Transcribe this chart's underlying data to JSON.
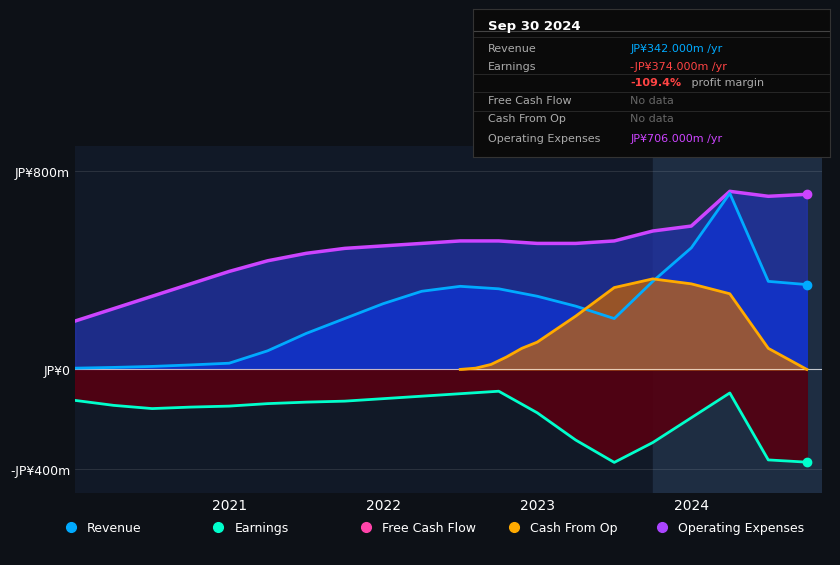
{
  "bg_color": "#0d1117",
  "plot_area_bg": "#111927",
  "highlight_color": "#1e2d42",
  "yticks": [
    "JP¥800m",
    "JP¥0",
    "-JP¥400m"
  ],
  "ytick_vals": [
    800,
    0,
    -400
  ],
  "xtick_labels": [
    "2021",
    "2022",
    "2023",
    "2024"
  ],
  "legend": [
    {
      "label": "Revenue",
      "color": "#00aaff"
    },
    {
      "label": "Earnings",
      "color": "#00ffcc"
    },
    {
      "label": "Free Cash Flow",
      "color": "#ff44aa"
    },
    {
      "label": "Cash From Op",
      "color": "#ffaa00"
    },
    {
      "label": "Operating Expenses",
      "color": "#aa44ff"
    }
  ],
  "revenue": {
    "x": [
      2020.0,
      2020.25,
      2020.5,
      2020.75,
      2021.0,
      2021.25,
      2021.5,
      2021.75,
      2022.0,
      2022.25,
      2022.5,
      2022.75,
      2023.0,
      2023.25,
      2023.5,
      2023.75,
      2024.0,
      2024.25,
      2024.5,
      2024.75
    ],
    "y": [
      5,
      8,
      12,
      18,
      25,
      75,
      145,
      205,
      265,
      315,
      335,
      325,
      295,
      255,
      205,
      355,
      490,
      710,
      355,
      342
    ],
    "color": "#00aaff",
    "lw": 2.0
  },
  "earnings": {
    "x": [
      2020.0,
      2020.25,
      2020.5,
      2020.75,
      2021.0,
      2021.25,
      2021.5,
      2021.75,
      2022.0,
      2022.25,
      2022.5,
      2022.75,
      2023.0,
      2023.25,
      2023.5,
      2023.75,
      2024.0,
      2024.25,
      2024.5,
      2024.75
    ],
    "y": [
      -125,
      -145,
      -158,
      -152,
      -148,
      -138,
      -132,
      -128,
      -118,
      -108,
      -98,
      -88,
      -175,
      -285,
      -375,
      -295,
      -195,
      -95,
      -365,
      -374
    ],
    "color": "#00ffcc",
    "lw": 2.0
  },
  "operating_expenses": {
    "x": [
      2020.0,
      2020.25,
      2020.5,
      2020.75,
      2021.0,
      2021.25,
      2021.5,
      2021.75,
      2022.0,
      2022.25,
      2022.5,
      2022.75,
      2023.0,
      2023.25,
      2023.5,
      2023.75,
      2024.0,
      2024.25,
      2024.5,
      2024.75
    ],
    "y": [
      195,
      245,
      295,
      345,
      395,
      438,
      468,
      488,
      498,
      508,
      518,
      518,
      508,
      508,
      518,
      558,
      578,
      718,
      698,
      706
    ],
    "color": "#cc44ff",
    "lw": 2.5
  },
  "cash_from_op": {
    "x": [
      2022.5,
      2022.6,
      2022.7,
      2022.8,
      2022.9,
      2023.0,
      2023.25,
      2023.5,
      2023.75,
      2024.0,
      2024.25,
      2024.5,
      2024.75
    ],
    "y": [
      0,
      5,
      20,
      50,
      85,
      110,
      215,
      330,
      365,
      345,
      305,
      85,
      0
    ],
    "color": "#ffaa00",
    "lw": 2.0
  },
  "ylim": [
    -500,
    900
  ],
  "xlim": [
    2020.0,
    2024.85
  ],
  "highlight_x_start": 2023.75,
  "highlight_x_end": 2024.85,
  "info_box": {
    "title": "Sep 30 2024",
    "rows": [
      {
        "label": "Revenue",
        "value": "JP¥342.000m /yr",
        "value_color": "#00aaff",
        "label_color": "#aaaaaa"
      },
      {
        "label": "Earnings",
        "value": "-JP¥374.000m /yr",
        "value_color": "#ff4444",
        "label_color": "#aaaaaa"
      },
      {
        "label": "",
        "value": " profit margin",
        "value_color": "#aaaaaa",
        "label_color": "#aaaaaa",
        "prefix": "-109.4%",
        "prefix_color": "#ff4444"
      },
      {
        "label": "Free Cash Flow",
        "value": "No data",
        "value_color": "#666666",
        "label_color": "#aaaaaa"
      },
      {
        "label": "Cash From Op",
        "value": "No data",
        "value_color": "#666666",
        "label_color": "#aaaaaa"
      },
      {
        "label": "Operating Expenses",
        "value": "JP¥706.000m /yr",
        "value_color": "#cc44ff",
        "label_color": "#aaaaaa"
      }
    ]
  }
}
